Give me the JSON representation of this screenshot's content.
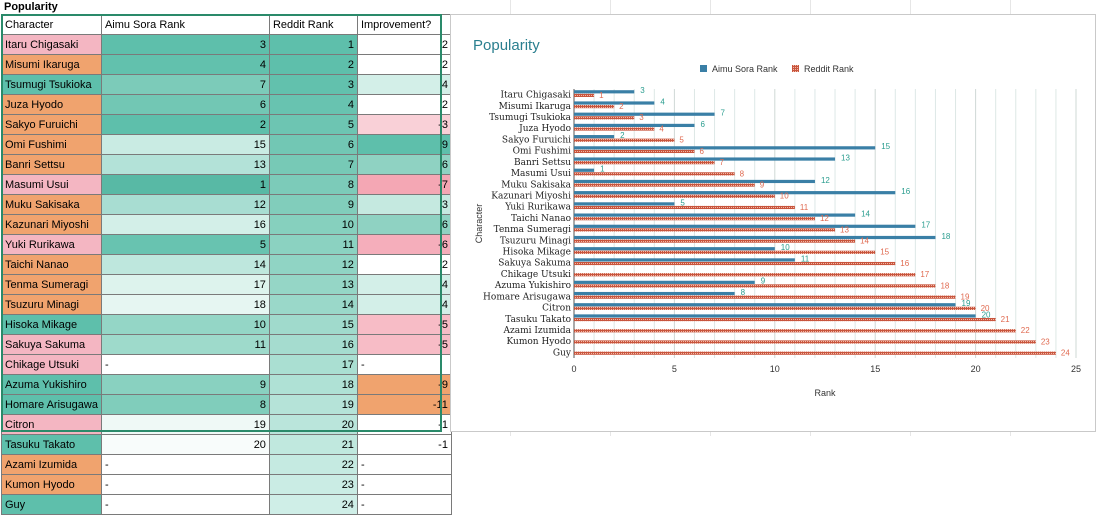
{
  "sheet": {
    "title": "Popularity",
    "headers": [
      "Character",
      "Aimu Sora Rank",
      "Reddit Rank",
      "Improvement?"
    ],
    "rows": [
      {
        "name": "Itaru Chigasaki",
        "aimu": "3",
        "reddit": "1",
        "imp": "2",
        "nc": "#f4b6c2",
        "ac": "#5ebfab",
        "rc": "#5ebfab",
        "ic": "#ffffff"
      },
      {
        "name": "Misumi Ikaruga",
        "aimu": "4",
        "reddit": "2",
        "imp": "2",
        "nc": "#f0a36e",
        "ac": "#62c1ad",
        "rc": "#5ebfab",
        "ic": "#ffffff"
      },
      {
        "name": "Tsumugi Tsukioka",
        "aimu": "7",
        "reddit": "3",
        "imp": "4",
        "nc": "#5ebfab",
        "ac": "#7ccbb9",
        "rc": "#62c1ad",
        "ic": "#d3efe8"
      },
      {
        "name": "Juza Hyodo",
        "aimu": "6",
        "reddit": "4",
        "imp": "2",
        "nc": "#f0a36e",
        "ac": "#72c7b4",
        "rc": "#68c3b0",
        "ic": "#ffffff"
      },
      {
        "name": "Sakyo Furuichi",
        "aimu": "2",
        "reddit": "5",
        "imp": "-3",
        "nc": "#f0a36e",
        "ac": "#5ebfab",
        "rc": "#6dc5b2",
        "ic": "#f9d0d7"
      },
      {
        "name": "Omi Fushimi",
        "aimu": "15",
        "reddit": "6",
        "imp": "9",
        "nc": "#f0a36e",
        "ac": "#c9ebe3",
        "rc": "#72c7b4",
        "ic": "#5ebfab"
      },
      {
        "name": "Banri Settsu",
        "aimu": "13",
        "reddit": "7",
        "imp": "6",
        "nc": "#f0a36e",
        "ac": "#b3e2d8",
        "rc": "#77c9b6",
        "ic": "#8fd2c2"
      },
      {
        "name": "Masumi Usui",
        "aimu": "1",
        "reddit": "8",
        "imp": "-7",
        "nc": "#f4b6c2",
        "ac": "#58b9a5",
        "rc": "#7ccbb9",
        "ic": "#f4a7b4"
      },
      {
        "name": "Muku Sakisaka",
        "aimu": "12",
        "reddit": "9",
        "imp": "3",
        "nc": "#f0a36e",
        "ac": "#a8ddd2",
        "rc": "#81cdbb",
        "ic": "#c5e9e0"
      },
      {
        "name": "Kazunari Miyoshi",
        "aimu": "16",
        "reddit": "10",
        "imp": "6",
        "nc": "#f0a36e",
        "ac": "#d3efe8",
        "rc": "#86d0be",
        "ic": "#8fd2c2"
      },
      {
        "name": "Yuki Rurikawa",
        "aimu": "5",
        "reddit": "11",
        "imp": "-6",
        "nc": "#f4b6c2",
        "ac": "#68c3b0",
        "rc": "#8bd2c1",
        "ic": "#f5aebb"
      },
      {
        "name": "Taichi Nanao",
        "aimu": "14",
        "reddit": "12",
        "imp": "2",
        "nc": "#f0a36e",
        "ac": "#bee7dd",
        "rc": "#90d4c4",
        "ic": "#ffffff"
      },
      {
        "name": "Tenma Sumeragi",
        "aimu": "17",
        "reddit": "13",
        "imp": "4",
        "nc": "#f0a36e",
        "ac": "#ddf3ed",
        "rc": "#95d6c6",
        "ic": "#d3efe8"
      },
      {
        "name": "Tsuzuru Minagi",
        "aimu": "18",
        "reddit": "14",
        "imp": "4",
        "nc": "#f0a36e",
        "ac": "#e6f6f2",
        "rc": "#9ad8c9",
        "ic": "#d3efe8"
      },
      {
        "name": "Hisoka Mikage",
        "aimu": "10",
        "reddit": "15",
        "imp": "-5",
        "nc": "#5ebfab",
        "ac": "#94d6c6",
        "rc": "#a0dacc",
        "ic": "#f7bcc6"
      },
      {
        "name": "Sakuya Sakuma",
        "aimu": "11",
        "reddit": "16",
        "imp": "-5",
        "nc": "#f4b6c2",
        "ac": "#9edacb",
        "rc": "#a5dccf",
        "ic": "#f7bcc6"
      },
      {
        "name": "Chikage Utsuki",
        "aimu": "-",
        "reddit": "17",
        "imp": "-",
        "nc": "#f4b6c2",
        "ac": "#ffffff",
        "rc": "#aadfd2",
        "ic": "#ffffff"
      },
      {
        "name": "Azuma Yukishiro",
        "aimu": "9",
        "reddit": "18",
        "imp": "-9",
        "nc": "#5ebfab",
        "ac": "#89d1c0",
        "rc": "#afe1d5",
        "ic": "#f0a36e"
      },
      {
        "name": "Homare Arisugawa",
        "aimu": "8",
        "reddit": "19",
        "imp": "-11",
        "nc": "#5ebfab",
        "ac": "#80cdbb",
        "rc": "#b5e3d8",
        "ic": "#f0a36e"
      },
      {
        "name": "Citron",
        "aimu": "19",
        "reddit": "20",
        "imp": "-1",
        "nc": "#f4b6c2",
        "ac": "#eff9f6",
        "rc": "#bae5db",
        "ic": "#ffffff"
      },
      {
        "name": "Tasuku Takato",
        "aimu": "20",
        "reddit": "21",
        "imp": "-1",
        "nc": "#5ebfab",
        "ac": "#f8fcfb",
        "rc": "#c0e8de",
        "ic": "#ffffff"
      },
      {
        "name": "Azami Izumida",
        "aimu": "-",
        "reddit": "22",
        "imp": "-",
        "nc": "#f0a36e",
        "ac": "#ffffff",
        "rc": "#c5eae1",
        "ic": "#ffffff"
      },
      {
        "name": "Kumon Hyodo",
        "aimu": "-",
        "reddit": "23",
        "imp": "-",
        "nc": "#f0a36e",
        "ac": "#ffffff",
        "rc": "#caece4",
        "ic": "#ffffff"
      },
      {
        "name": "Guy",
        "aimu": "-",
        "reddit": "24",
        "imp": "-",
        "nc": "#5ebfab",
        "ac": "#ffffff",
        "rc": "#cfeee7",
        "ic": "#ffffff"
      }
    ]
  },
  "chart_data": {
    "type": "bar",
    "orientation": "horizontal",
    "title": "Popularity",
    "xlabel": "Rank",
    "ylabel": "Character",
    "xlim": [
      0,
      25
    ],
    "xticks": [
      "0",
      "5",
      "10",
      "15",
      "20",
      "25"
    ],
    "legend": "top-center",
    "grid": true,
    "categories": [
      "Itaru Chigasaki",
      "Misumi Ikaruga",
      "Tsumugi Tsukioka",
      "Juza Hyodo",
      "Sakyo Furuichi",
      "Omi Fushimi",
      "Banri Settsu",
      "Masumi Usui",
      "Muku Sakisaka",
      "Kazunari Miyoshi",
      "Yuki Rurikawa",
      "Taichi Nanao",
      "Tenma Sumeragi",
      "Tsuzuru Minagi",
      "Hisoka Mikage",
      "Sakuya Sakuma",
      "Chikage Utsuki",
      "Azuma Yukishiro",
      "Homare Arisugawa",
      "Citron",
      "Tasuku Takato",
      "Azami Izumida",
      "Kumon Hyodo",
      "Guy"
    ],
    "series": [
      {
        "name": "Aimu Sora Rank",
        "color": "#3a7fa6",
        "label_color": "#2a9d8f",
        "values": [
          3,
          4,
          7,
          6,
          2,
          15,
          13,
          1,
          12,
          16,
          5,
          14,
          17,
          18,
          10,
          11,
          null,
          9,
          8,
          19,
          20,
          null,
          null,
          null
        ]
      },
      {
        "name": "Reddit Rank",
        "color": "#c8553d",
        "label_color": "#e06a50",
        "values": [
          1,
          2,
          3,
          4,
          5,
          6,
          7,
          8,
          9,
          10,
          11,
          12,
          13,
          14,
          15,
          16,
          17,
          18,
          19,
          20,
          21,
          22,
          23,
          24
        ]
      }
    ]
  }
}
